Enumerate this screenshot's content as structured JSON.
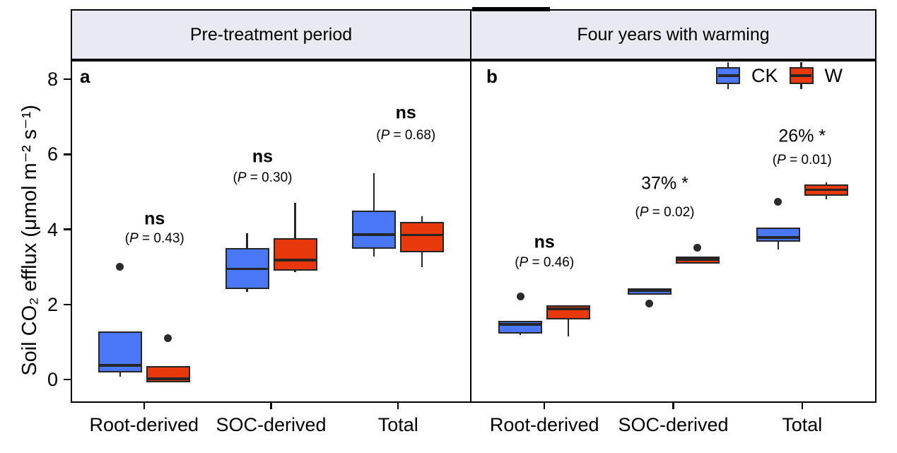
{
  "chart_data": {
    "type": "boxplot",
    "ylabel": "Soil CO₂ efflux (μmol m⁻² s⁻¹)",
    "ylim": [
      -0.6,
      8.5
    ],
    "yticks": [
      0,
      2,
      4,
      6,
      8
    ],
    "categories": [
      "Root-derived",
      "SOC-derived",
      "Total"
    ],
    "grid": false,
    "legend": {
      "position": "top-right",
      "items": [
        {
          "label": "CK",
          "color": "#4A77F5"
        },
        {
          "label": "W",
          "color": "#E8390D"
        }
      ]
    },
    "colors": {
      "ck_fill": "#4A77F5",
      "w_fill": "#E8390D",
      "box_border": "#262626",
      "strip_background": "#E8E9F1"
    },
    "panels": [
      {
        "letter": "a",
        "title": "Pre-treatment period",
        "series": [
          {
            "name": "CK",
            "color": "#4A77F5",
            "boxes": [
              {
                "category": "Root-derived",
                "whisker_low": 0.08,
                "q1": 0.18,
                "median": 0.38,
                "q3": 1.28,
                "whisker_high": 1.28,
                "outliers": [
                  3.0
                ]
              },
              {
                "category": "SOC-derived",
                "whisker_low": 2.33,
                "q1": 2.41,
                "median": 2.95,
                "q3": 3.5,
                "whisker_high": 3.9,
                "outliers": []
              },
              {
                "category": "Total",
                "whisker_low": 3.28,
                "q1": 3.48,
                "median": 3.86,
                "q3": 4.5,
                "whisker_high": 5.5,
                "outliers": []
              }
            ]
          },
          {
            "name": "W",
            "color": "#E8390D",
            "boxes": [
              {
                "category": "Root-derived",
                "whisker_low": -0.08,
                "q1": -0.08,
                "median": 0.02,
                "q3": 0.35,
                "whisker_high": 0.35,
                "outliers": [
                  1.1
                ]
              },
              {
                "category": "SOC-derived",
                "whisker_low": 2.86,
                "q1": 2.9,
                "median": 3.18,
                "q3": 3.77,
                "whisker_high": 4.71,
                "outliers": []
              },
              {
                "category": "Total",
                "whisker_low": 3.0,
                "q1": 3.39,
                "median": 3.85,
                "q3": 4.2,
                "whisker_high": 4.35,
                "outliers": []
              }
            ]
          }
        ],
        "annotations": [
          {
            "category": "Root-derived",
            "label": "ns",
            "bold": true,
            "p_text": "(P = 0.43)",
            "dx": 15,
            "label_y": 4.27,
            "p_y": 3.74
          },
          {
            "category": "SOC-derived",
            "label": "ns",
            "bold": true,
            "p_text": "(P = 0.30)",
            "dx": -12,
            "label_y": 5.93,
            "p_y": 5.36
          },
          {
            "category": "Total",
            "label": "ns",
            "bold": true,
            "p_text": "(P = 0.68)",
            "dx": 11,
            "label_y": 7.1,
            "p_y": 6.49
          }
        ]
      },
      {
        "letter": "b",
        "title": "Four years with warming",
        "series": [
          {
            "name": "CK",
            "color": "#4A77F5",
            "boxes": [
              {
                "category": "Root-derived",
                "whisker_low": 1.18,
                "q1": 1.22,
                "median": 1.47,
                "q3": 1.57,
                "whisker_high": 1.57,
                "outliers": [
                  2.22
                ]
              },
              {
                "category": "SOC-derived",
                "whisker_low": 2.26,
                "q1": 2.26,
                "median": 2.36,
                "q3": 2.43,
                "whisker_high": 2.43,
                "outliers": [
                  2.03
                ]
              },
              {
                "category": "Total",
                "whisker_low": 3.47,
                "q1": 3.67,
                "median": 3.78,
                "q3": 4.05,
                "whisker_high": 4.05,
                "outliers": [
                  4.73
                ]
              }
            ]
          },
          {
            "name": "W",
            "color": "#E8390D",
            "boxes": [
              {
                "category": "Root-derived",
                "whisker_low": 1.15,
                "q1": 1.6,
                "median": 1.88,
                "q3": 1.97,
                "whisker_high": 1.97,
                "outliers": []
              },
              {
                "category": "SOC-derived",
                "whisker_low": 3.09,
                "q1": 3.09,
                "median": 3.2,
                "q3": 3.28,
                "whisker_high": 3.28,
                "outliers": [
                  3.52
                ]
              },
              {
                "category": "Total",
                "whisker_low": 4.8,
                "q1": 4.9,
                "median": 5.05,
                "q3": 5.2,
                "whisker_high": 5.25,
                "outliers": []
              }
            ]
          }
        ],
        "annotations": [
          {
            "category": "Root-derived",
            "label": "ns",
            "bold": true,
            "p_text": "(P = 0.46)",
            "dx": 0,
            "label_y": 3.65,
            "p_y": 3.11
          },
          {
            "category": "SOC-derived",
            "label": "37% *",
            "bold": false,
            "p_text": "(P = 0.02)",
            "dx": -12,
            "label_y": 5.21,
            "p_y": 4.44
          },
          {
            "category": "Total",
            "label": "26% *",
            "bold": false,
            "p_text": "(P = 0.01)",
            "dx": 0,
            "label_y": 6.48,
            "p_y": 5.84
          }
        ]
      }
    ]
  }
}
